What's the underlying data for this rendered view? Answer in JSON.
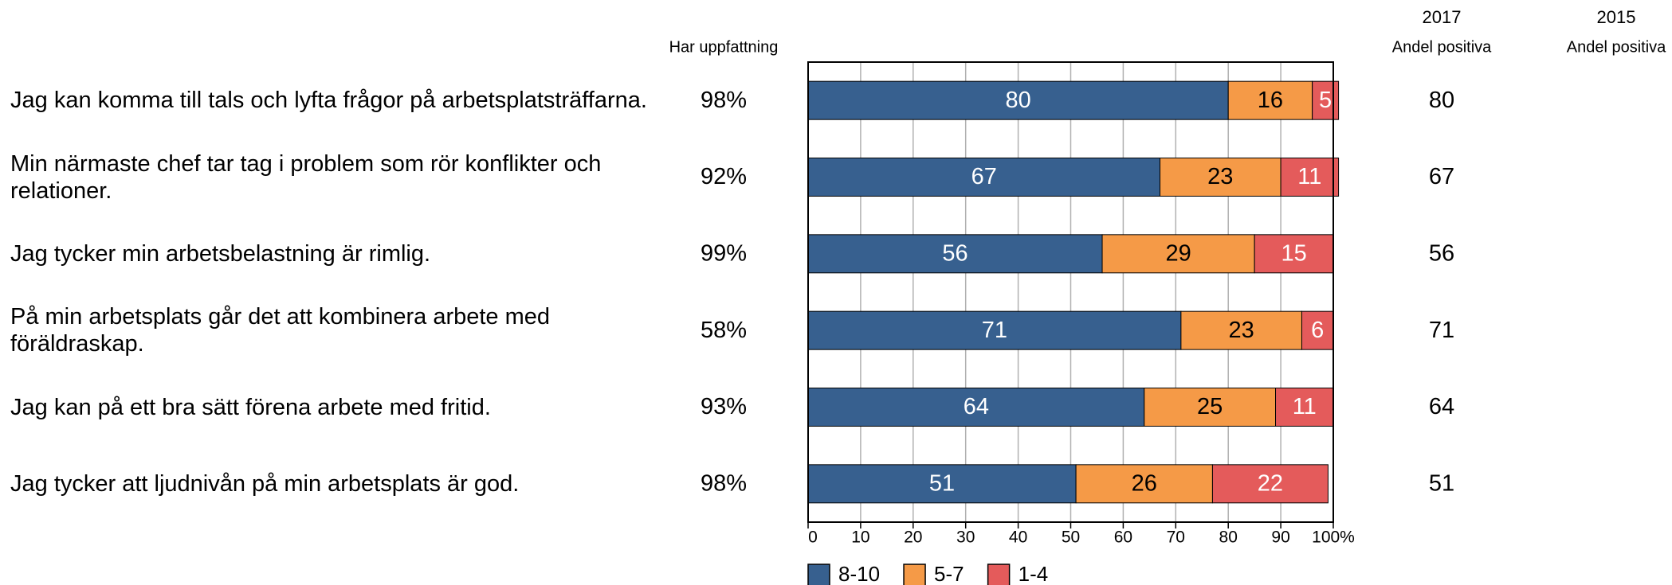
{
  "chart_data": {
    "type": "stacked_barh",
    "categories": [
      "Jag kan komma till tals och lyfta frågor på arbetsplatsträffarna.",
      "Min närmaste chef tar tag i problem som rör konflikter och relationer.",
      "Jag tycker min arbetsbelastning är rimlig.",
      "På min arbetsplats går det att kombinera arbete med föräldraskap.",
      "Jag kan på ett bra sätt förena arbete med fritid.",
      "Jag tycker att ljudnivån på min arbetsplats är god."
    ],
    "series": [
      {
        "name": "8-10",
        "color": "#37608f",
        "label_color": "#ffffff",
        "values": [
          80,
          67,
          56,
          71,
          64,
          51
        ]
      },
      {
        "name": "5-7",
        "color": "#f59a47",
        "label_color": "#000000",
        "values": [
          16,
          23,
          29,
          23,
          25,
          26
        ]
      },
      {
        "name": "1-4",
        "color": "#e45b5b",
        "label_color": "#ffffff",
        "values": [
          5,
          11,
          15,
          6,
          11,
          22
        ]
      }
    ],
    "xlim": [
      0,
      100
    ],
    "xticks": [
      0,
      10,
      20,
      30,
      40,
      50,
      60,
      70,
      80,
      90,
      {
        "value": 100,
        "label": "100%"
      }
    ],
    "grid": true,
    "columns": [
      {
        "header": "Har uppfattning",
        "cells": [
          "98%",
          "92%",
          "99%",
          "58%",
          "93%",
          "98%"
        ]
      },
      {
        "year": "2017",
        "header": "Andel positiva",
        "cells": [
          80,
          67,
          56,
          71,
          64,
          51
        ]
      },
      {
        "year": "2015",
        "header": "Andel positiva"
      }
    ]
  }
}
